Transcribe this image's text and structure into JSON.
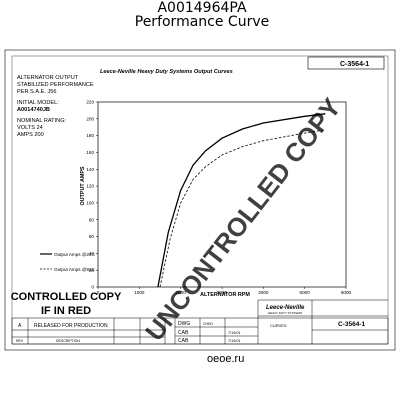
{
  "header": {
    "part_number": "A0014964PA",
    "subtitle": "Performance Curve"
  },
  "sheet": {
    "left_block": {
      "line1": "ALTERNATOR OUTPUT",
      "line2": "STABILIZED PERFORMANCE",
      "line3": "PER S.A.E. J56",
      "model_label": "INITIAL MODEL:",
      "model": "A0014740JB",
      "rating_label": "NOMINAL RATING:",
      "volts": "VOLTS 24",
      "amps": "AMPS 200"
    },
    "stamp_line1": "CONTROLLED COPY",
    "stamp_line2": "IF IN RED",
    "watermark": "UNCONTROLLED COPY",
    "drawing_number": "C-3564-1",
    "drawing_number_bottom": "C-3564-1",
    "title_block": {
      "rev_a": "A",
      "released": "RELEASED FOR PRODUCTION",
      "rev": "REV",
      "description": "DESCRIPTION",
      "dwg": "DWG",
      "chkd": "CHKD",
      "cab1": "CAB",
      "cab2": "CAB",
      "date1": "7/19/01",
      "date2": "7/19/01",
      "brand": "Leece-Neville",
      "brand_sub": "HEAVY DUTY SYSTEMS",
      "customer": "CURVES"
    },
    "site": "oeoe.ru"
  },
  "chart_data": {
    "type": "line",
    "title": "Leece-Neville Heavy Duty Systems Output Curves",
    "xlabel": "ALTERNATOR RPM",
    "ylabel": "OUTPUT AMPS",
    "xlim": [
      0,
      6000
    ],
    "ylim": [
      0,
      220
    ],
    "x_ticks": [
      "0",
      "1000",
      "2000",
      "3000",
      "4000",
      "5000",
      "6000"
    ],
    "y_ticks": [
      "0",
      "20",
      "40",
      "60",
      "80",
      "100",
      "120",
      "140",
      "160",
      "180",
      "200",
      "220"
    ],
    "grid": false,
    "legend_position": "bottom-left",
    "series": [
      {
        "name": "Output Amps @24C",
        "color": "#000000",
        "style": "solid",
        "x": [
          1450,
          1700,
          2000,
          2300,
          2600,
          3000,
          3500,
          4000,
          5000,
          5500
        ],
        "y": [
          0,
          65,
          115,
          145,
          162,
          177,
          188,
          195,
          203,
          206
        ]
      },
      {
        "name": "Output Amps @93C",
        "color": "#000000",
        "style": "dashed",
        "x": [
          1500,
          1750,
          2000,
          2300,
          2600,
          3000,
          3500,
          4000,
          5000,
          5500
        ],
        "y": [
          0,
          58,
          100,
          128,
          143,
          157,
          167,
          174,
          183,
          187
        ]
      }
    ]
  }
}
